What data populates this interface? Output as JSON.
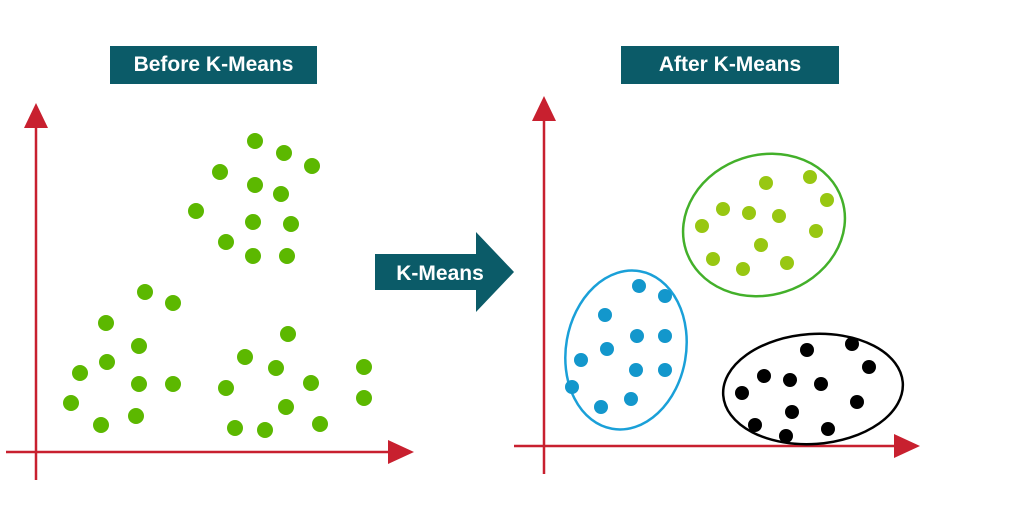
{
  "titles": {
    "before": "Before K-Means",
    "after": "After K-Means"
  },
  "transition": {
    "label": "K-Means"
  },
  "colors": {
    "title_bg": "#0b5b68",
    "axis": "#c8202f",
    "unclustered_point": "#5cb800",
    "cluster_green": "#98c712",
    "cluster_green_outline": "#43b02a",
    "cluster_blue": "#1397cc",
    "cluster_blue_outline": "#1aa0d8",
    "cluster_black": "#000000",
    "arrow": "#0b5b68"
  },
  "before_points": [
    [
      255,
      141
    ],
    [
      284,
      153
    ],
    [
      312,
      166
    ],
    [
      220,
      172
    ],
    [
      255,
      185
    ],
    [
      281,
      194
    ],
    [
      196,
      211
    ],
    [
      253,
      222
    ],
    [
      291,
      224
    ],
    [
      226,
      242
    ],
    [
      253,
      256
    ],
    [
      287,
      256
    ],
    [
      145,
      292
    ],
    [
      173,
      303
    ],
    [
      106,
      323
    ],
    [
      139,
      346
    ],
    [
      107,
      362
    ],
    [
      80,
      373
    ],
    [
      139,
      384
    ],
    [
      173,
      384
    ],
    [
      71,
      403
    ],
    [
      136,
      416
    ],
    [
      101,
      425
    ],
    [
      288,
      334
    ],
    [
      245,
      357
    ],
    [
      276,
      368
    ],
    [
      311,
      383
    ],
    [
      226,
      388
    ],
    [
      286,
      407
    ],
    [
      235,
      428
    ],
    [
      265,
      430
    ],
    [
      320,
      424
    ],
    [
      364,
      367
    ],
    [
      364,
      398
    ]
  ],
  "clusters": [
    {
      "name": "green",
      "points": [
        [
          766,
          183
        ],
        [
          810,
          177
        ],
        [
          723,
          209
        ],
        [
          749,
          213
        ],
        [
          779,
          216
        ],
        [
          827,
          200
        ],
        [
          702,
          226
        ],
        [
          761,
          245
        ],
        [
          816,
          231
        ],
        [
          713,
          259
        ],
        [
          743,
          269
        ],
        [
          787,
          263
        ]
      ]
    },
    {
      "name": "blue",
      "points": [
        [
          639,
          286
        ],
        [
          665,
          296
        ],
        [
          605,
          315
        ],
        [
          637,
          336
        ],
        [
          665,
          336
        ],
        [
          607,
          349
        ],
        [
          581,
          360
        ],
        [
          636,
          370
        ],
        [
          665,
          370
        ],
        [
          572,
          387
        ],
        [
          631,
          399
        ],
        [
          601,
          407
        ]
      ]
    },
    {
      "name": "black",
      "points": [
        [
          807,
          350
        ],
        [
          852,
          344
        ],
        [
          869,
          367
        ],
        [
          764,
          376
        ],
        [
          790,
          380
        ],
        [
          821,
          384
        ],
        [
          742,
          393
        ],
        [
          857,
          402
        ],
        [
          792,
          412
        ],
        [
          755,
          425
        ],
        [
          828,
          429
        ],
        [
          786,
          436
        ]
      ]
    }
  ]
}
